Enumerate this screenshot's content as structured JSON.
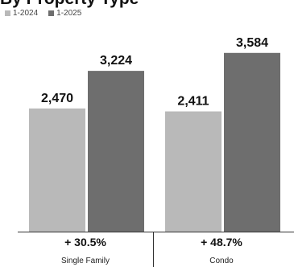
{
  "page": {
    "title": "By Property Type"
  },
  "chart_data": {
    "type": "bar",
    "title": "By Property Type",
    "categories": [
      "Single Family",
      "Condo"
    ],
    "series": [
      {
        "name": "1-2024",
        "values": [
          2470,
          2411
        ],
        "labels": [
          "2,470",
          "2,411"
        ],
        "color": "#b9b9b9"
      },
      {
        "name": "1-2025",
        "values": [
          3224,
          3584
        ],
        "labels": [
          "3,224",
          "3,584"
        ],
        "color": "#6e6e6e"
      }
    ],
    "changes": [
      "+ 30.5%",
      "+ 48.7%"
    ],
    "ylim": [
      0,
      4000
    ],
    "grid": false,
    "legend": "top-left"
  }
}
